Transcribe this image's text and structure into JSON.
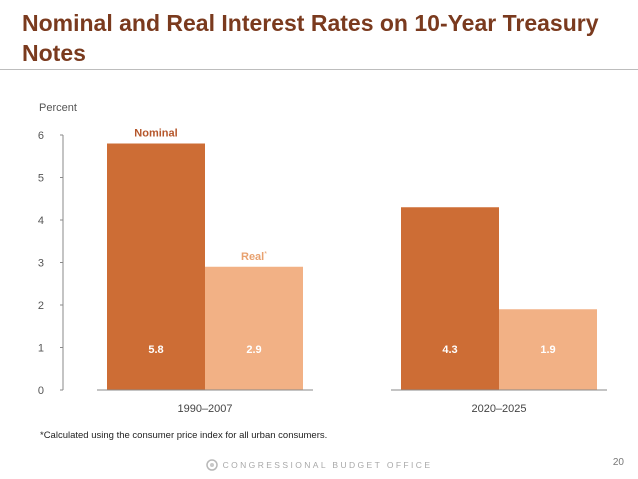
{
  "slide": {
    "title": "Nominal and Real Interest Rates on 10-Year Treasury Notes",
    "footnote": "*Calculated using the consumer price index for all urban consumers.",
    "footer": "CONGRESSIONAL BUDGET OFFICE",
    "page_number": "20"
  },
  "colors": {
    "nominal": "#cd6d35",
    "real": "#f2b185",
    "title": "#7a3a1e",
    "series_label_nominal": "#b5562a",
    "series_label_real": "#e8a16f",
    "bar_label": "#ffffff"
  },
  "chart_data": {
    "type": "bar",
    "title": "",
    "ylabel": "Percent",
    "xlabel": "",
    "ylim": [
      0,
      6
    ],
    "yticks": [
      0,
      1,
      2,
      3,
      4,
      5,
      6
    ],
    "categories": [
      "1990–2007",
      "2020–2025"
    ],
    "series": [
      {
        "name": "Nominal",
        "label": "Nominal",
        "values": [
          5.8,
          4.3
        ],
        "value_labels": [
          "5.8",
          "4.3"
        ]
      },
      {
        "name": "Real",
        "label": "Real",
        "label_marker": "*",
        "values": [
          2.9,
          1.9
        ],
        "value_labels": [
          "2.9",
          "1.9"
        ]
      }
    ],
    "grid": false,
    "legend": "direct labels above first-category bars"
  }
}
